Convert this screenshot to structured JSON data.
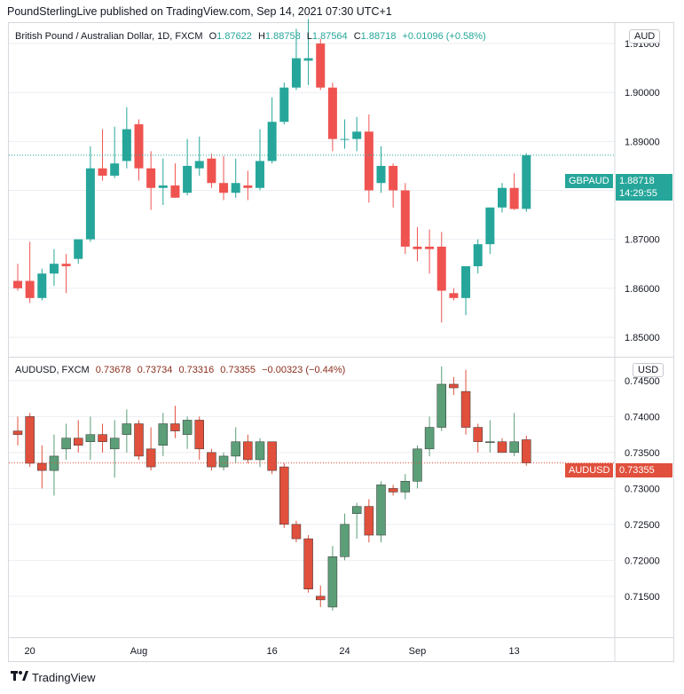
{
  "header": {
    "text": "PoundSterlingLive published on TradingView.com, Sep 14, 2021 07:30 UTC+1"
  },
  "footer": {
    "brand": "TradingView"
  },
  "colors": {
    "up": "#26a69a",
    "down": "#ef5350",
    "up2": "#5b9e77",
    "down2": "#e0503c",
    "grid": "#eceef2"
  },
  "pane1": {
    "legend": {
      "symbol": "British Pound / Australian Dollar, 1D, FXCM",
      "o_label": "O",
      "o": "1.87622",
      "h_label": "H",
      "h": "1.88758",
      "l_label": "L",
      "l": "1.87564",
      "c_label": "C",
      "c": "1.88718",
      "change": "+0.01096 (+0.58%)"
    },
    "currency": "AUD",
    "price_tag": {
      "label": "GBPAUD",
      "value": "1.88718",
      "countdown": "14:29:55"
    }
  },
  "pane2": {
    "legend": {
      "symbol": "AUDUSD, FXCM",
      "o": "0.73678",
      "h": "0.73734",
      "l": "0.73316",
      "c": "0.73355",
      "change": "−0.00323 (−0.44%)"
    },
    "currency": "USD",
    "price_tag": {
      "label": "AUDUSD",
      "value": "0.73355"
    }
  },
  "chart_data": [
    {
      "type": "candlestick",
      "title": "British Pound / Australian Dollar, 1D, FXCM",
      "ylim": [
        1.846,
        1.914
      ],
      "yticks": [
        "1.91000",
        "1.90000",
        "1.89000",
        "1.88000",
        "1.87000",
        "1.86000",
        "1.85000"
      ],
      "ytick_values": [
        1.91,
        1.9,
        1.89,
        1.88,
        1.87,
        1.86,
        1.85
      ],
      "last_price": 1.88718,
      "candles": [
        {
          "o": 1.8615,
          "h": 1.865,
          "l": 1.8595,
          "c": 1.86
        },
        {
          "o": 1.8615,
          "h": 1.8695,
          "l": 1.857,
          "c": 1.858
        },
        {
          "o": 1.858,
          "h": 1.864,
          "l": 1.8575,
          "c": 1.863
        },
        {
          "o": 1.863,
          "h": 1.868,
          "l": 1.8605,
          "c": 1.865
        },
        {
          "o": 1.865,
          "h": 1.867,
          "l": 1.859,
          "c": 1.8645
        },
        {
          "o": 1.866,
          "h": 1.8695,
          "l": 1.865,
          "c": 1.87
        },
        {
          "o": 1.87,
          "h": 1.889,
          "l": 1.8695,
          "c": 1.8845
        },
        {
          "o": 1.8845,
          "h": 1.8925,
          "l": 1.882,
          "c": 1.883
        },
        {
          "o": 1.883,
          "h": 1.893,
          "l": 1.8825,
          "c": 1.8855
        },
        {
          "o": 1.886,
          "h": 1.897,
          "l": 1.8845,
          "c": 1.8925
        },
        {
          "o": 1.8935,
          "h": 1.8945,
          "l": 1.882,
          "c": 1.8845
        },
        {
          "o": 1.8845,
          "h": 1.888,
          "l": 1.876,
          "c": 1.8805
        },
        {
          "o": 1.8805,
          "h": 1.8865,
          "l": 1.877,
          "c": 1.881
        },
        {
          "o": 1.881,
          "h": 1.8855,
          "l": 1.8785,
          "c": 1.8785
        },
        {
          "o": 1.8795,
          "h": 1.8905,
          "l": 1.879,
          "c": 1.885
        },
        {
          "o": 1.8845,
          "h": 1.891,
          "l": 1.883,
          "c": 1.886
        },
        {
          "o": 1.8865,
          "h": 1.8875,
          "l": 1.8805,
          "c": 1.8815
        },
        {
          "o": 1.8815,
          "h": 1.887,
          "l": 1.878,
          "c": 1.8795
        },
        {
          "o": 1.8795,
          "h": 1.8865,
          "l": 1.8785,
          "c": 1.8815
        },
        {
          "o": 1.881,
          "h": 1.884,
          "l": 1.878,
          "c": 1.8805
        },
        {
          "o": 1.8805,
          "h": 1.8925,
          "l": 1.88,
          "c": 1.886
        },
        {
          "o": 1.886,
          "h": 1.899,
          "l": 1.8855,
          "c": 1.894
        },
        {
          "o": 1.894,
          "h": 1.902,
          "l": 1.8935,
          "c": 1.901
        },
        {
          "o": 1.901,
          "h": 1.913,
          "l": 1.9005,
          "c": 1.907
        },
        {
          "o": 1.9065,
          "h": 1.915,
          "l": 1.9015,
          "c": 1.907
        },
        {
          "o": 1.91,
          "h": 1.911,
          "l": 1.9005,
          "c": 1.901
        },
        {
          "o": 1.901,
          "h": 1.902,
          "l": 1.888,
          "c": 1.8905
        },
        {
          "o": 1.8905,
          "h": 1.8945,
          "l": 1.8885,
          "c": 1.8905
        },
        {
          "o": 1.8905,
          "h": 1.895,
          "l": 1.888,
          "c": 1.892
        },
        {
          "o": 1.892,
          "h": 1.8955,
          "l": 1.8775,
          "c": 1.88
        },
        {
          "o": 1.8815,
          "h": 1.889,
          "l": 1.8795,
          "c": 1.885
        },
        {
          "o": 1.885,
          "h": 1.8855,
          "l": 1.8765,
          "c": 1.88
        },
        {
          "o": 1.88,
          "h": 1.8815,
          "l": 1.867,
          "c": 1.8685
        },
        {
          "o": 1.8685,
          "h": 1.8725,
          "l": 1.8655,
          "c": 1.868
        },
        {
          "o": 1.8685,
          "h": 1.872,
          "l": 1.863,
          "c": 1.868
        },
        {
          "o": 1.8685,
          "h": 1.8715,
          "l": 1.853,
          "c": 1.8595
        },
        {
          "o": 1.859,
          "h": 1.86,
          "l": 1.8575,
          "c": 1.858
        },
        {
          "o": 1.858,
          "h": 1.864,
          "l": 1.8545,
          "c": 1.8645
        },
        {
          "o": 1.8645,
          "h": 1.87,
          "l": 1.863,
          "c": 1.869
        },
        {
          "o": 1.869,
          "h": 1.8765,
          "l": 1.867,
          "c": 1.8765
        },
        {
          "o": 1.8765,
          "h": 1.8815,
          "l": 1.8755,
          "c": 1.8805
        },
        {
          "o": 1.8805,
          "h": 1.8835,
          "l": 1.876,
          "c": 1.8762
        },
        {
          "o": 1.87622,
          "h": 1.88758,
          "l": 1.87564,
          "c": 1.88718
        }
      ]
    },
    {
      "type": "candlestick",
      "title": "AUDUSD, FXCM",
      "ylim": [
        0.7093,
        0.7482
      ],
      "yticks": [
        "0.74500",
        "0.74000",
        "0.73500",
        "0.73000",
        "0.72500",
        "0.72000",
        "0.71500"
      ],
      "ytick_values": [
        0.745,
        0.74,
        0.735,
        0.73,
        0.725,
        0.72,
        0.715
      ],
      "last_price": 0.73355,
      "xticks": [
        "20",
        "Aug",
        "16",
        "24",
        "Sep",
        "13"
      ],
      "xtick_index": [
        1,
        10,
        21,
        27,
        33,
        41
      ],
      "candles": [
        {
          "o": 0.738,
          "h": 0.74,
          "l": 0.736,
          "c": 0.7375
        },
        {
          "o": 0.74,
          "h": 0.7405,
          "l": 0.733,
          "c": 0.7335
        },
        {
          "o": 0.7335,
          "h": 0.736,
          "l": 0.73,
          "c": 0.7325
        },
        {
          "o": 0.7325,
          "h": 0.7375,
          "l": 0.729,
          "c": 0.7345
        },
        {
          "o": 0.7355,
          "h": 0.739,
          "l": 0.734,
          "c": 0.737
        },
        {
          "o": 0.737,
          "h": 0.7395,
          "l": 0.735,
          "c": 0.736
        },
        {
          "o": 0.7365,
          "h": 0.74,
          "l": 0.734,
          "c": 0.7375
        },
        {
          "o": 0.7375,
          "h": 0.739,
          "l": 0.735,
          "c": 0.7365
        },
        {
          "o": 0.7355,
          "h": 0.7395,
          "l": 0.7315,
          "c": 0.737
        },
        {
          "o": 0.7375,
          "h": 0.741,
          "l": 0.735,
          "c": 0.739
        },
        {
          "o": 0.739,
          "h": 0.7395,
          "l": 0.734,
          "c": 0.7345
        },
        {
          "o": 0.7355,
          "h": 0.7385,
          "l": 0.7325,
          "c": 0.733
        },
        {
          "o": 0.736,
          "h": 0.7405,
          "l": 0.7345,
          "c": 0.739
        },
        {
          "o": 0.739,
          "h": 0.7415,
          "l": 0.737,
          "c": 0.738
        },
        {
          "o": 0.7375,
          "h": 0.74,
          "l": 0.7355,
          "c": 0.7395
        },
        {
          "o": 0.7395,
          "h": 0.74,
          "l": 0.734,
          "c": 0.7355
        },
        {
          "o": 0.735,
          "h": 0.7355,
          "l": 0.7325,
          "c": 0.733
        },
        {
          "o": 0.733,
          "h": 0.735,
          "l": 0.7325,
          "c": 0.7345
        },
        {
          "o": 0.7345,
          "h": 0.7385,
          "l": 0.7335,
          "c": 0.7365
        },
        {
          "o": 0.7365,
          "h": 0.7375,
          "l": 0.7335,
          "c": 0.734
        },
        {
          "o": 0.734,
          "h": 0.737,
          "l": 0.733,
          "c": 0.7365
        },
        {
          "o": 0.7365,
          "h": 0.7365,
          "l": 0.732,
          "c": 0.7325
        },
        {
          "o": 0.733,
          "h": 0.7335,
          "l": 0.7245,
          "c": 0.725
        },
        {
          "o": 0.725,
          "h": 0.7255,
          "l": 0.7225,
          "c": 0.723
        },
        {
          "o": 0.723,
          "h": 0.7235,
          "l": 0.7155,
          "c": 0.716
        },
        {
          "o": 0.715,
          "h": 0.7165,
          "l": 0.7135,
          "c": 0.7145
        },
        {
          "o": 0.7135,
          "h": 0.722,
          "l": 0.713,
          "c": 0.7205
        },
        {
          "o": 0.7205,
          "h": 0.7265,
          "l": 0.72,
          "c": 0.725
        },
        {
          "o": 0.7265,
          "h": 0.728,
          "l": 0.723,
          "c": 0.7275
        },
        {
          "o": 0.7275,
          "h": 0.7285,
          "l": 0.7225,
          "c": 0.7235
        },
        {
          "o": 0.7235,
          "h": 0.731,
          "l": 0.7225,
          "c": 0.7305
        },
        {
          "o": 0.73,
          "h": 0.7305,
          "l": 0.729,
          "c": 0.7295
        },
        {
          "o": 0.7295,
          "h": 0.732,
          "l": 0.7285,
          "c": 0.731
        },
        {
          "o": 0.731,
          "h": 0.736,
          "l": 0.73,
          "c": 0.7355
        },
        {
          "o": 0.7355,
          "h": 0.74,
          "l": 0.7345,
          "c": 0.7385
        },
        {
          "o": 0.7385,
          "h": 0.747,
          "l": 0.738,
          "c": 0.7445
        },
        {
          "o": 0.7445,
          "h": 0.7455,
          "l": 0.743,
          "c": 0.744
        },
        {
          "o": 0.7435,
          "h": 0.7465,
          "l": 0.7375,
          "c": 0.7385
        },
        {
          "o": 0.7385,
          "h": 0.739,
          "l": 0.735,
          "c": 0.7365
        },
        {
          "o": 0.7365,
          "h": 0.7395,
          "l": 0.735,
          "c": 0.7365
        },
        {
          "o": 0.7365,
          "h": 0.737,
          "l": 0.735,
          "c": 0.735
        },
        {
          "o": 0.735,
          "h": 0.7405,
          "l": 0.7345,
          "c": 0.7365
        },
        {
          "o": 0.73678,
          "h": 0.73734,
          "l": 0.73316,
          "c": 0.73355
        }
      ]
    }
  ]
}
